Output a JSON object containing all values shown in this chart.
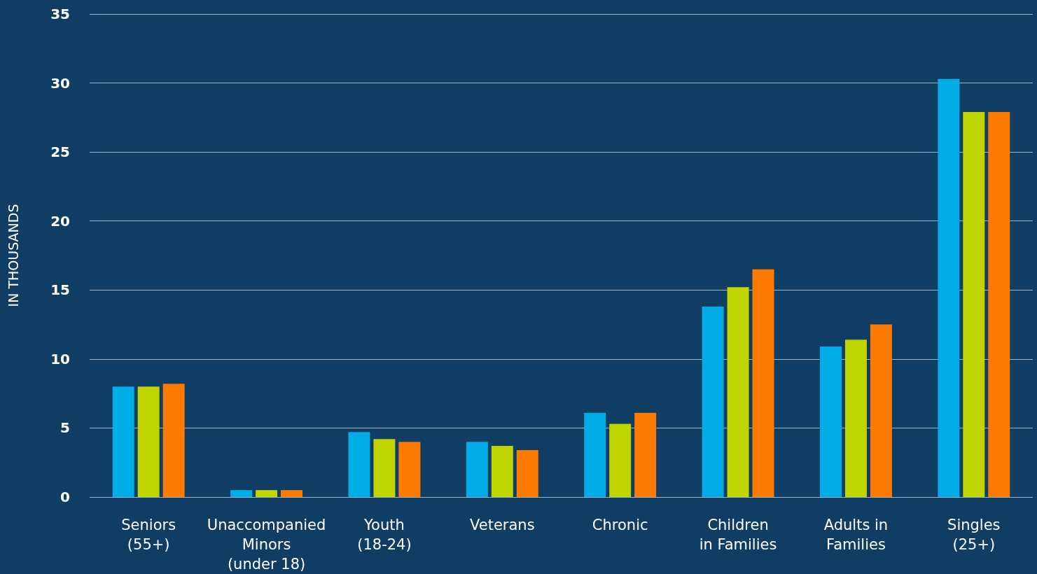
{
  "chart_data": {
    "type": "bar",
    "ylabel": "IN THOUSANDS",
    "categories": [
      "Seniors\n(55+)",
      "Unaccompanied\nMinors\n(under 18)",
      "Youth\n(18-24)",
      "Veterans",
      "Chronic",
      "Children\nin Families",
      "Adults in\nFamilies",
      "Singles\n(25+)"
    ],
    "series": [
      {
        "color": "#00ade6",
        "values": [
          8.0,
          0.5,
          4.7,
          4.0,
          6.1,
          13.8,
          10.9,
          30.3
        ]
      },
      {
        "color": "#c0d400",
        "values": [
          8.0,
          0.5,
          4.2,
          3.7,
          5.3,
          15.2,
          11.4,
          27.9
        ]
      },
      {
        "color": "#ff7a00",
        "values": [
          8.2,
          0.5,
          4.0,
          3.4,
          6.1,
          16.5,
          12.5,
          27.9
        ]
      }
    ],
    "ylim": [
      0,
      35
    ],
    "yticks": [
      0,
      5,
      10,
      15,
      20,
      25,
      30,
      35
    ],
    "grid": "y"
  }
}
